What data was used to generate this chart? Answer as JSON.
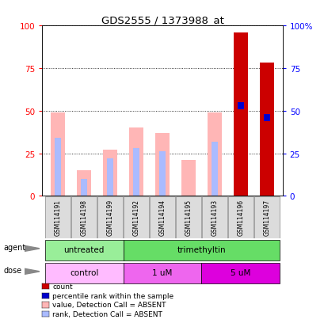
{
  "title": "GDS2555 / 1373988_at",
  "samples": [
    "GSM114191",
    "GSM114198",
    "GSM114199",
    "GSM114192",
    "GSM114194",
    "GSM114195",
    "GSM114193",
    "GSM114196",
    "GSM114197"
  ],
  "value_absent": [
    49,
    15,
    27,
    40,
    37,
    21,
    49,
    0,
    0
  ],
  "rank_absent": [
    34,
    10,
    22,
    28,
    26,
    0,
    32,
    0,
    0
  ],
  "count": [
    0,
    0,
    0,
    0,
    0,
    0,
    0,
    96,
    78
  ],
  "percentile_rank": [
    0,
    0,
    0,
    0,
    0,
    0,
    0,
    53,
    46
  ],
  "has_count": [
    false,
    false,
    false,
    false,
    false,
    false,
    false,
    true,
    true
  ],
  "agent_groups": [
    {
      "label": "untreated",
      "start": 0,
      "end": 3,
      "color": "#99EE99"
    },
    {
      "label": "trimethyltin",
      "start": 3,
      "end": 9,
      "color": "#66DD66"
    }
  ],
  "dose_groups": [
    {
      "label": "control",
      "start": 0,
      "end": 3,
      "color": "#FFBBFF"
    },
    {
      "label": "1 uM",
      "start": 3,
      "end": 6,
      "color": "#EE66EE"
    },
    {
      "label": "5 uM",
      "start": 6,
      "end": 9,
      "color": "#DD00DD"
    }
  ],
  "color_value_absent": "#FFB6B6",
  "color_rank_absent": "#AABBFF",
  "color_count": "#CC0000",
  "color_percentile": "#0000CC",
  "ylim": [
    0,
    100
  ],
  "yticks_left": [
    0,
    25,
    50,
    75,
    100
  ],
  "yticks_right": [
    0,
    25,
    50,
    75,
    100
  ],
  "background_color": "#ffffff"
}
